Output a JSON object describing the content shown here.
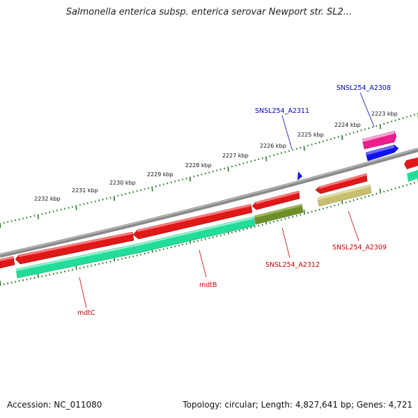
{
  "title": "Salmonella enterica subsp. enterica serovar Newport str. SL2...",
  "footer": {
    "accession": "Accession: NC_011080",
    "topology": "Topology: circular; Length: 4,827,641 bp; Genes: 4,721"
  },
  "scale_labels": [
    "2223 kbp",
    "2224 kbp",
    "2225 kbp",
    "2226 kbp",
    "2227 kbp",
    "2228 kbp",
    "2229 kbp",
    "2230 kbp",
    "2231 kbp",
    "2232 kbp"
  ],
  "gene_labels": [
    {
      "text": "SNSL254_A2308",
      "color": "#0000c0"
    },
    {
      "text": "SNSL254_A2311",
      "color": "#0000c0"
    },
    {
      "text": "SNSL254_A2309",
      "color": "#cc0000"
    },
    {
      "text": "SNSL254_A2312",
      "color": "#cc0000"
    },
    {
      "text": "mdtB",
      "color": "#cc0000"
    },
    {
      "text": "mdtC",
      "color": "#cc0000"
    }
  ],
  "colors": {
    "cds": "#e01818",
    "gene_green": "#22dd99",
    "olive": "#6e8e2a",
    "khaki": "#c8c070",
    "magenta": "#ee1c8c",
    "blue": "#1010ee",
    "backbone": "#888888",
    "ticks": "#1e7a1e"
  }
}
